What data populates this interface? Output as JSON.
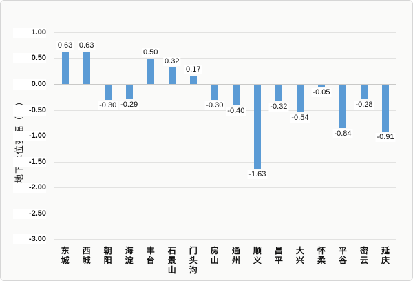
{
  "chart_data": {
    "type": "bar",
    "title": "",
    "xlabel": "",
    "ylabel": "地下水位变幅（米）",
    "categories": [
      "东城",
      "西城",
      "朝阳",
      "海淀",
      "丰台",
      "石景山",
      "门头沟",
      "房山",
      "通州",
      "顺义",
      "昌平",
      "大兴",
      "怀柔",
      "平谷",
      "密云",
      "延庆"
    ],
    "values": [
      0.63,
      0.63,
      -0.3,
      -0.29,
      0.5,
      0.32,
      0.17,
      -0.3,
      -0.4,
      -1.63,
      -0.32,
      -0.54,
      -0.05,
      -0.84,
      -0.28,
      -0.91
    ],
    "data_labels": [
      "0.63",
      "0.63",
      "-0.30",
      "-0.29",
      "0.50",
      "0.32",
      "0.17",
      "-0.30",
      "-0.40",
      "-1.63",
      "-0.32",
      "-0.54",
      "-0.05",
      "-0.84",
      "-0.28",
      "-0.91"
    ],
    "ylim": [
      -3.0,
      1.0
    ],
    "ytick_step": 0.5,
    "ytick_labels": [
      "1.00",
      "0.50",
      "0.00",
      "-0.50",
      "-1.00",
      "-1.50",
      "-2.00",
      "-2.50",
      "-3.00"
    ],
    "grid": true,
    "legend": false,
    "colors": {
      "bar": "#5B9BD5",
      "gridline": "#e2e2e1",
      "zero_line": "#c9c9c8",
      "background": "#fafaf9",
      "border": "#d6d6d6",
      "label_background": "#ffffff",
      "text": "#111111"
    }
  }
}
